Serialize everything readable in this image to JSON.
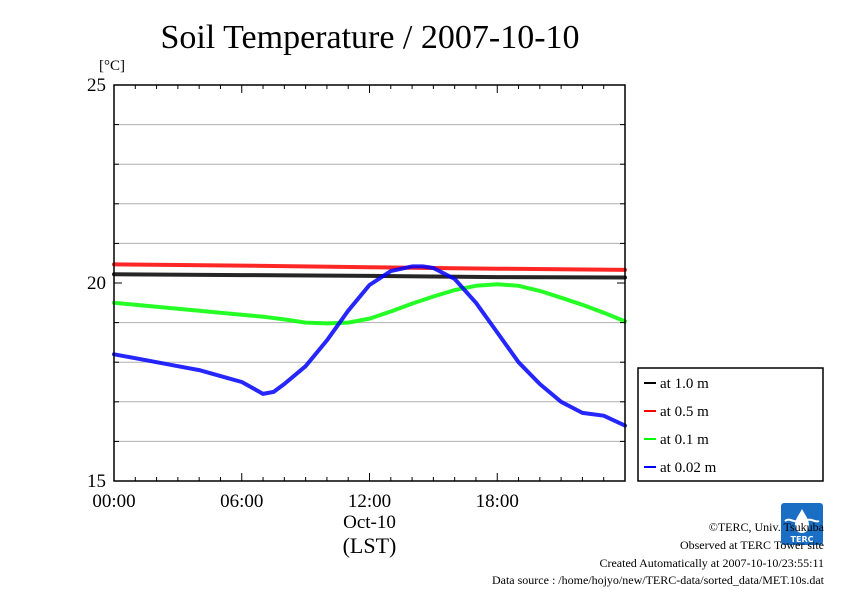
{
  "chart_data": {
    "type": "line",
    "title": "Soil Temperature / 2007-10-10",
    "y_unit": "[°C]",
    "ylim": [
      15,
      25
    ],
    "xlim_hours": [
      0,
      24
    ],
    "y_tick_labels": [
      "15",
      "20",
      "25"
    ],
    "y_tick_values": [
      15,
      20,
      25
    ],
    "y_gridlines": [
      16,
      17,
      18,
      19,
      21,
      22,
      23,
      24
    ],
    "x_tick_labels": [
      "00:00",
      "06:00",
      "12:00",
      "18:00"
    ],
    "x_tick_hours": [
      0,
      6,
      12,
      18
    ],
    "date_label": "Oct-10",
    "x_axis_label": "(LST)",
    "grid": true,
    "legend_position": "right",
    "series": [
      {
        "name": "at 1.0 m",
        "color": "#000000",
        "x": [
          0,
          6,
          12,
          18,
          24
        ],
        "y": [
          20.22,
          20.2,
          20.18,
          20.15,
          20.14
        ]
      },
      {
        "name": "at 0.5 m",
        "color": "#ff0000",
        "x": [
          0,
          6,
          12,
          18,
          24
        ],
        "y": [
          20.47,
          20.44,
          20.4,
          20.36,
          20.33
        ]
      },
      {
        "name": "at 0.1 m",
        "color": "#00ff00",
        "x": [
          0,
          1,
          2,
          3,
          4,
          5,
          6,
          7,
          8,
          9,
          10,
          11,
          12,
          13,
          14,
          15,
          16,
          17,
          18,
          19,
          20,
          21,
          22,
          23,
          24
        ],
        "y": [
          19.5,
          19.45,
          19.4,
          19.35,
          19.3,
          19.25,
          19.2,
          19.15,
          19.08,
          19.0,
          18.98,
          19.0,
          19.1,
          19.28,
          19.48,
          19.66,
          19.82,
          19.93,
          19.97,
          19.93,
          19.8,
          19.63,
          19.45,
          19.25,
          19.03
        ]
      },
      {
        "name": "at 0.02 m",
        "color": "#0000ff",
        "x": [
          0,
          1,
          2,
          3,
          4,
          5,
          6,
          6.5,
          7,
          7.5,
          8,
          9,
          10,
          11,
          12,
          13,
          14,
          14.5,
          15,
          16,
          17,
          18,
          19,
          20,
          21,
          22,
          23,
          24
        ],
        "y": [
          18.2,
          18.1,
          18.0,
          17.9,
          17.8,
          17.65,
          17.5,
          17.35,
          17.2,
          17.25,
          17.45,
          17.9,
          18.55,
          19.3,
          19.95,
          20.3,
          20.42,
          20.42,
          20.38,
          20.1,
          19.5,
          18.75,
          18.0,
          17.45,
          17.0,
          16.72,
          16.65,
          16.4
        ]
      }
    ]
  },
  "credits": {
    "copyright": "©TERC, Univ. Tsukuba",
    "observed": "Observed at TERC Tower site",
    "created": "Created Automatically at 2007-10-10/23:55:11",
    "source": "Data source : /home/hojyo/new/TERC-data/sorted_data/MET.10s.dat"
  },
  "logo": {
    "text": "TERC",
    "color": "#1a6fc4"
  }
}
